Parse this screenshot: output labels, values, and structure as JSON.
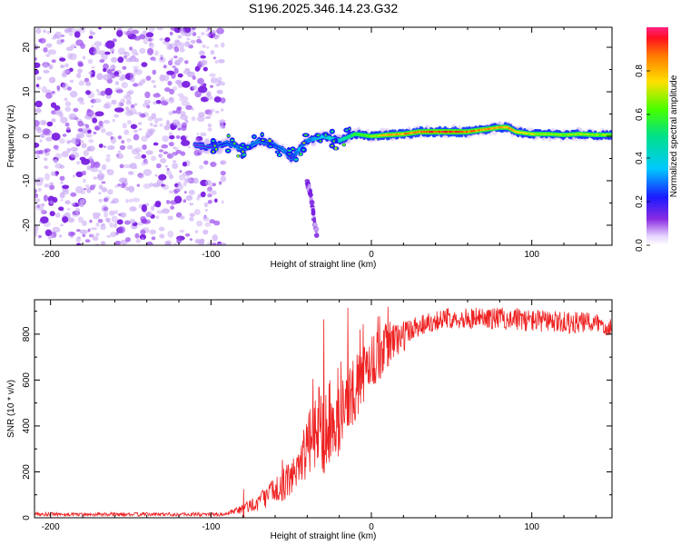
{
  "title": "S196.2025.346.14.23.G32",
  "colors": {
    "snr_line": "#ee2222",
    "axis": "#000000",
    "background": "#ffffff",
    "noise_purple": "#8a2be2"
  },
  "chart_data": [
    {
      "type": "heatmap",
      "name": "spectrogram",
      "xlabel": "Height of straight line (km)",
      "ylabel": "Frequency (Hz)",
      "xlim": [
        -210,
        150
      ],
      "ylim": [
        -24.5,
        24.5
      ],
      "xticks": [
        -200,
        -100,
        0,
        100
      ],
      "yticks": [
        -20,
        -10,
        0,
        10,
        20
      ],
      "noise_region_x": [
        -210,
        -92
      ],
      "ridge": {
        "x": [
          -110,
          -100,
          -90,
          -80,
          -70,
          -60,
          -55,
          -50,
          -45,
          -40,
          -30,
          -20,
          -10,
          0,
          10,
          20,
          30,
          40,
          50,
          60,
          70,
          80,
          85,
          90,
          100,
          110,
          120,
          130,
          140,
          150
        ],
        "y": [
          -2,
          -2.5,
          -1.5,
          -3,
          -1,
          -2,
          -3,
          -5,
          -3,
          -1,
          0,
          -1,
          0.5,
          0,
          0.3,
          0.5,
          1,
          1,
          1,
          1,
          1.5,
          2,
          2,
          1,
          0.5,
          0.5,
          0.3,
          0.5,
          0.3,
          0.3
        ],
        "amplitude": [
          0.15,
          0.2,
          0.25,
          0.3,
          0.3,
          0.25,
          0.3,
          0.2,
          0.35,
          0.3,
          0.4,
          0.45,
          0.6,
          0.7,
          0.85,
          0.9,
          0.95,
          1.0,
          1.0,
          0.95,
          0.9,
          0.85,
          0.9,
          0.8,
          0.75,
          0.7,
          0.7,
          0.75,
          0.7,
          0.7
        ]
      },
      "branch": {
        "x": [
          -40,
          -38,
          -36,
          -34
        ],
        "y": [
          -10,
          -13,
          -18,
          -22
        ]
      }
    },
    {
      "type": "colorbar",
      "label": "Normalized spectral amplitude",
      "range": [
        0,
        1
      ],
      "ticks": [
        0.0,
        0.2,
        0.4,
        0.6,
        0.8
      ],
      "tick_labels": [
        "0.0",
        "0.2",
        "0.4",
        "0.6",
        "0.8"
      ]
    },
    {
      "type": "line",
      "name": "snr",
      "xlabel": "Height of straight line (km)",
      "ylabel": "SNR (10 * v/v)",
      "xlim": [
        -210,
        150
      ],
      "ylim": [
        0,
        950
      ],
      "xticks": [
        -200,
        -100,
        0,
        100
      ],
      "yticks": [
        0,
        200,
        400,
        600,
        800
      ],
      "envelope": {
        "x": [
          -210,
          -90,
          -80,
          -70,
          -60,
          -50,
          -45,
          -40,
          -35,
          -30,
          -25,
          -20,
          -15,
          -10,
          -5,
          0,
          5,
          10,
          15,
          20,
          25,
          30,
          40,
          50,
          60,
          80,
          100,
          120,
          140,
          150
        ],
        "y": [
          15,
          15,
          40,
          70,
          120,
          170,
          250,
          300,
          380,
          300,
          380,
          420,
          500,
          560,
          620,
          690,
          700,
          760,
          780,
          790,
          820,
          840,
          860,
          870,
          870,
          870,
          860,
          850,
          850,
          830
        ],
        "spread": [
          8,
          8,
          25,
          40,
          60,
          80,
          100,
          140,
          160,
          120,
          150,
          150,
          160,
          140,
          140,
          120,
          110,
          100,
          90,
          70,
          60,
          50,
          45,
          45,
          45,
          50,
          50,
          50,
          45,
          45
        ]
      },
      "spikes": [
        {
          "x": -30,
          "y": 865
        },
        {
          "x": -15,
          "y": 915
        },
        {
          "x": 10,
          "y": 920
        },
        {
          "x": -80,
          "y": 125
        }
      ]
    }
  ]
}
